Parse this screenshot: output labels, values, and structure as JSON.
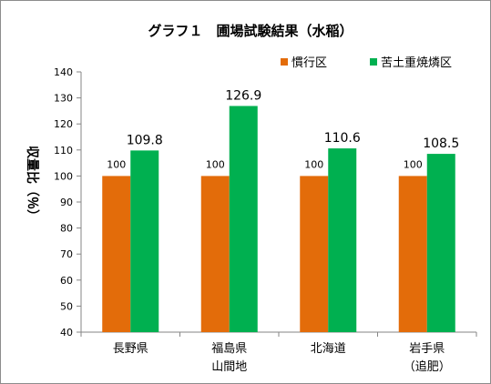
{
  "chart_data": {
    "type": "bar",
    "title": "グラフ１　圃場試験結果（水稲）",
    "ylabel": "収量比（％）",
    "xlabel": "",
    "categories": [
      "長野県",
      "福島県\n山間地",
      "北海道",
      "岩手県\n（追肥）"
    ],
    "series": [
      {
        "name": "慣行区",
        "values": [
          100,
          100,
          100,
          100
        ],
        "labels": [
          "100",
          "100",
          "100",
          "100"
        ],
        "color": "#E36C0A"
      },
      {
        "name": "苦土重焼燐区",
        "values": [
          109.8,
          126.9,
          110.6,
          108.5
        ],
        "labels": [
          "109.8",
          "126.9",
          "110.6",
          "108.5"
        ],
        "color": "#00B050"
      }
    ],
    "ylim": [
      40,
      140
    ],
    "yticks": [
      40,
      50,
      60,
      70,
      80,
      90,
      100,
      110,
      120,
      130,
      140
    ],
    "grid": false,
    "legend_position": "top-right"
  }
}
